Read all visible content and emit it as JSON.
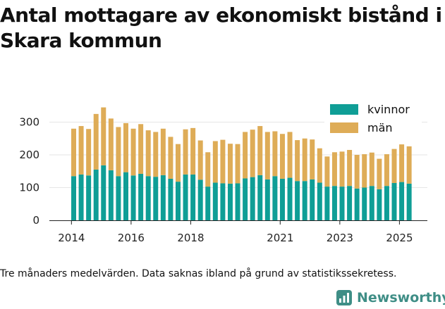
{
  "chart_data": {
    "type": "bar",
    "stacked": true,
    "title": "Antal mottagare av ekonomiskt bistånd i Skara kommun",
    "xlabel": "",
    "ylabel": "",
    "ylim": [
      0,
      360
    ],
    "yticks": [
      0,
      100,
      200,
      300
    ],
    "ytick_labels": [
      "0",
      "100",
      "200",
      "300"
    ],
    "xticks": [
      {
        "label": "2014",
        "index": -0.3
      },
      {
        "label": "2016",
        "index": 7.7
      },
      {
        "label": "2018",
        "index": 15.7
      },
      {
        "label": "2021",
        "index": 27.7
      },
      {
        "label": "2023",
        "index": 35.7
      },
      {
        "label": "2025",
        "index": 43.7
      }
    ],
    "legend_position": "top-right",
    "series": [
      {
        "name": "kvinnor",
        "color": "#0f9e96",
        "values": [
          135,
          140,
          137,
          155,
          168,
          153,
          135,
          147,
          137,
          142,
          135,
          133,
          138,
          127,
          118,
          140,
          140,
          124,
          103,
          115,
          113,
          112,
          113,
          128,
          132,
          138,
          125,
          135,
          127,
          130,
          120,
          120,
          125,
          115,
          103,
          105,
          103,
          105,
          97,
          100,
          105,
          95,
          105,
          114,
          117,
          112
        ]
      },
      {
        "name": "män",
        "color": "#deac57",
        "values": [
          145,
          148,
          142,
          170,
          177,
          158,
          150,
          150,
          143,
          152,
          140,
          137,
          142,
          128,
          115,
          138,
          142,
          120,
          105,
          127,
          133,
          122,
          120,
          142,
          145,
          150,
          145,
          137,
          137,
          140,
          125,
          130,
          122,
          105,
          92,
          103,
          107,
          110,
          103,
          102,
          102,
          93,
          97,
          104,
          115,
          114
        ]
      }
    ]
  },
  "caption": "Tre månaders medelvärden. Data saknas ibland på grund av statistikssekretess.",
  "brand": {
    "name": "Newsworthy",
    "icon": "newsworthy-logo-icon"
  }
}
